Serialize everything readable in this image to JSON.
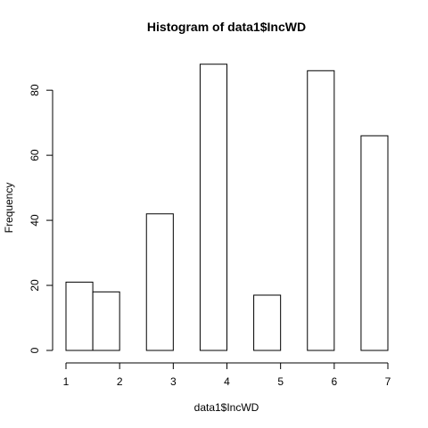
{
  "chart_data": {
    "type": "bar",
    "title": "Histogram of data1$IncWD",
    "xlabel": "data1$IncWD",
    "ylabel": "Frequency",
    "bins": [
      {
        "start": 1.0,
        "end": 1.5,
        "count": 21
      },
      {
        "start": 1.5,
        "end": 2.0,
        "count": 18
      },
      {
        "start": 2.0,
        "end": 2.5,
        "count": 0
      },
      {
        "start": 2.5,
        "end": 3.0,
        "count": 42
      },
      {
        "start": 3.0,
        "end": 3.5,
        "count": 0
      },
      {
        "start": 3.5,
        "end": 4.0,
        "count": 88
      },
      {
        "start": 4.0,
        "end": 4.5,
        "count": 0
      },
      {
        "start": 4.5,
        "end": 5.0,
        "count": 17
      },
      {
        "start": 5.0,
        "end": 5.5,
        "count": 0
      },
      {
        "start": 5.5,
        "end": 6.0,
        "count": 86
      },
      {
        "start": 6.0,
        "end": 6.5,
        "count": 0
      },
      {
        "start": 6.5,
        "end": 7.0,
        "count": 66
      }
    ],
    "xlim": [
      1,
      7
    ],
    "ylim": [
      0,
      88
    ],
    "x_ticks": [
      "1",
      "2",
      "3",
      "4",
      "5",
      "6",
      "7"
    ],
    "y_ticks": [
      "0",
      "20",
      "40",
      "60",
      "80"
    ],
    "grid": false,
    "legend": "none"
  }
}
